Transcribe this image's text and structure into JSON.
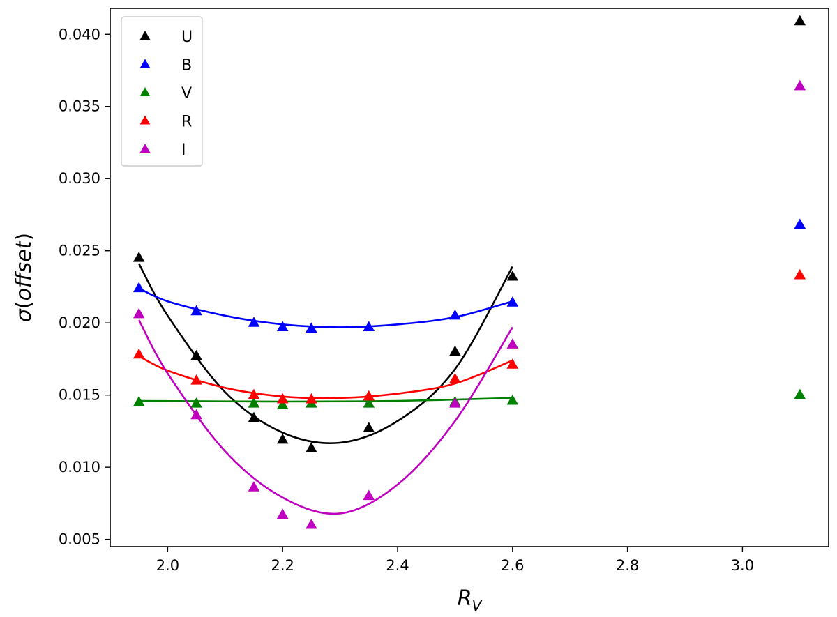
{
  "chart_data": {
    "type": "scatter",
    "xlabel": "R_V",
    "ylabel": "σ(offset)",
    "xlim": [
      1.9,
      3.15
    ],
    "ylim": [
      0.0045,
      0.0418
    ],
    "x_ticks": [
      "2.0",
      "2.2",
      "2.4",
      "2.6",
      "2.8",
      "3.0"
    ],
    "y_ticks": [
      "0.005",
      "0.010",
      "0.015",
      "0.020",
      "0.025",
      "0.030",
      "0.035",
      "0.040"
    ],
    "legend_position": "top-left",
    "grid": false,
    "marker": "triangle",
    "series": [
      {
        "name": "U",
        "color": "#000000",
        "points": [
          [
            1.95,
            0.0245
          ],
          [
            2.05,
            0.0177
          ],
          [
            2.15,
            0.0134
          ],
          [
            2.2,
            0.0119
          ],
          [
            2.25,
            0.0113
          ],
          [
            2.35,
            0.0127
          ],
          [
            2.5,
            0.018
          ],
          [
            2.6,
            0.0232
          ],
          [
            3.1,
            0.0409
          ]
        ],
        "fit": [
          [
            1.95,
            0.0241
          ],
          [
            2.0,
            0.0205
          ],
          [
            2.1,
            0.0152
          ],
          [
            2.2,
            0.0124
          ],
          [
            2.3,
            0.0117
          ],
          [
            2.4,
            0.0132
          ],
          [
            2.5,
            0.0168
          ],
          [
            2.6,
            0.0239
          ]
        ]
      },
      {
        "name": "B",
        "color": "#0000ff",
        "points": [
          [
            1.95,
            0.0224
          ],
          [
            2.05,
            0.0208
          ],
          [
            2.15,
            0.02
          ],
          [
            2.2,
            0.0197
          ],
          [
            2.25,
            0.0196
          ],
          [
            2.35,
            0.0197
          ],
          [
            2.5,
            0.0205
          ],
          [
            2.6,
            0.0214
          ],
          [
            3.1,
            0.0268
          ]
        ],
        "fit": [
          [
            1.95,
            0.0224
          ],
          [
            2.0,
            0.0215
          ],
          [
            2.1,
            0.0205
          ],
          [
            2.2,
            0.0199
          ],
          [
            2.3,
            0.0197
          ],
          [
            2.4,
            0.0199
          ],
          [
            2.5,
            0.0204
          ],
          [
            2.6,
            0.0215
          ]
        ]
      },
      {
        "name": "V",
        "color": "#008000",
        "points": [
          [
            1.95,
            0.0145
          ],
          [
            2.05,
            0.0144
          ],
          [
            2.15,
            0.0144
          ],
          [
            2.2,
            0.0143
          ],
          [
            2.25,
            0.0144
          ],
          [
            2.35,
            0.0144
          ],
          [
            2.5,
            0.0145
          ],
          [
            2.6,
            0.0146
          ],
          [
            3.1,
            0.015
          ]
        ],
        "fit": [
          [
            1.95,
            0.0146
          ],
          [
            2.2,
            0.01455
          ],
          [
            2.4,
            0.0146
          ],
          [
            2.6,
            0.0148
          ]
        ]
      },
      {
        "name": "R",
        "color": "#ff0000",
        "points": [
          [
            1.95,
            0.0178
          ],
          [
            2.05,
            0.016
          ],
          [
            2.15,
            0.015
          ],
          [
            2.2,
            0.0147
          ],
          [
            2.25,
            0.0147
          ],
          [
            2.35,
            0.0149
          ],
          [
            2.5,
            0.0161
          ],
          [
            2.6,
            0.0171
          ],
          [
            3.1,
            0.0233
          ]
        ],
        "fit": [
          [
            1.95,
            0.0177
          ],
          [
            2.0,
            0.0167
          ],
          [
            2.1,
            0.0155
          ],
          [
            2.2,
            0.0149
          ],
          [
            2.3,
            0.0148
          ],
          [
            2.4,
            0.0151
          ],
          [
            2.5,
            0.0158
          ],
          [
            2.6,
            0.0174
          ]
        ]
      },
      {
        "name": "I",
        "color": "#bf00bf",
        "points": [
          [
            1.95,
            0.0206
          ],
          [
            2.05,
            0.0136
          ],
          [
            2.15,
            0.0086
          ],
          [
            2.2,
            0.0067
          ],
          [
            2.25,
            0.006
          ],
          [
            2.35,
            0.008
          ],
          [
            2.5,
            0.0144
          ],
          [
            2.6,
            0.0185
          ],
          [
            3.1,
            0.0364
          ]
        ],
        "fit": [
          [
            1.95,
            0.0202
          ],
          [
            2.0,
            0.0165
          ],
          [
            2.1,
            0.0111
          ],
          [
            2.2,
            0.0079
          ],
          [
            2.3,
            0.0068
          ],
          [
            2.4,
            0.0088
          ],
          [
            2.5,
            0.0132
          ],
          [
            2.6,
            0.0197
          ]
        ]
      }
    ]
  }
}
